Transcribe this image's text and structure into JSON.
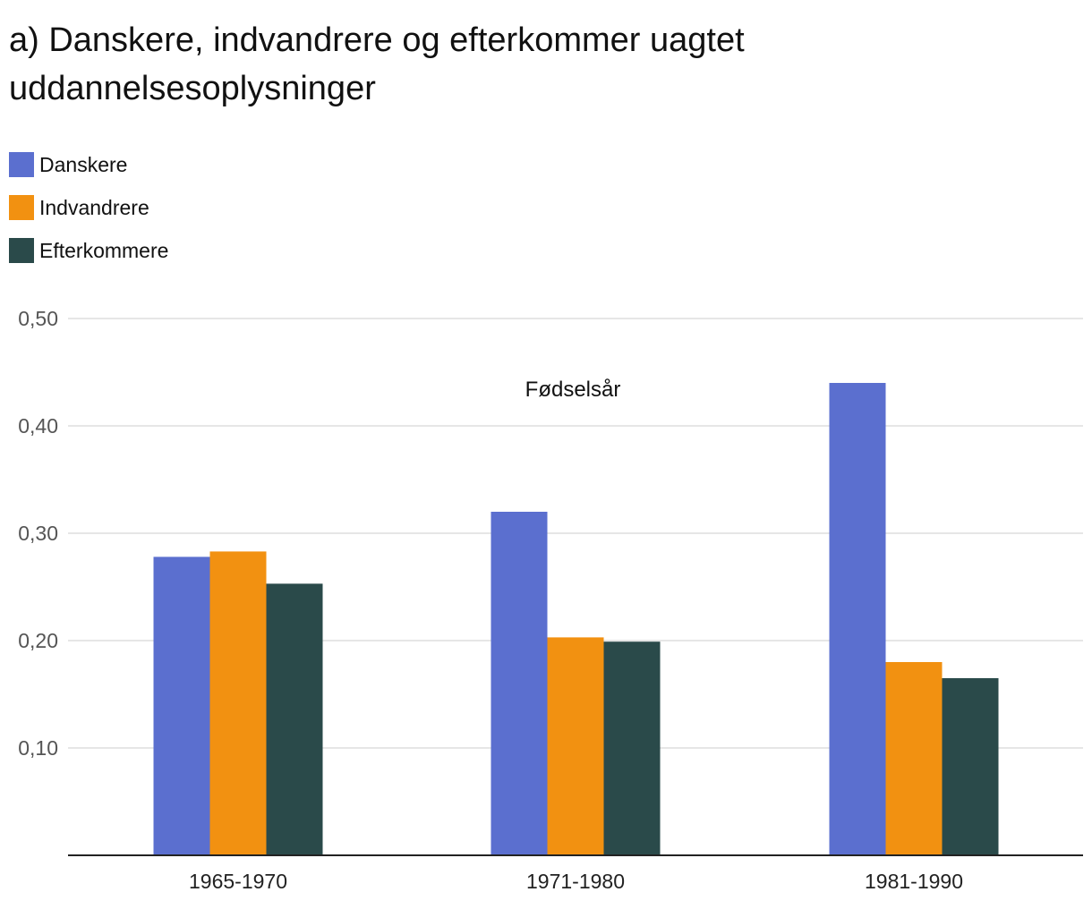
{
  "chart_data": {
    "type": "bar",
    "title": "a) Danskere, indvandrere og efterkommer uagtet uddannelsesoplysninger",
    "xlabel": "",
    "ylabel": "",
    "annotation": "Fødselsår",
    "categories": [
      "1965-1970",
      "1971-1980",
      "1981-1990"
    ],
    "series": [
      {
        "name": "Danskere",
        "color": "#5b6fcf",
        "values": [
          0.278,
          0.32,
          0.44
        ]
      },
      {
        "name": "Indvandrere",
        "color": "#f29111",
        "values": [
          0.283,
          0.203,
          0.18
        ]
      },
      {
        "name": "Efterkommere",
        "color": "#2a4a4a",
        "values": [
          0.253,
          0.199,
          0.165
        ]
      }
    ],
    "ylim": [
      0,
      0.5
    ],
    "yticks": [
      {
        "value": 0.1,
        "label": "0,10"
      },
      {
        "value": 0.2,
        "label": "0,20"
      },
      {
        "value": 0.3,
        "label": "0,30"
      },
      {
        "value": 0.4,
        "label": "0,40"
      },
      {
        "value": 0.5,
        "label": "0,50"
      }
    ],
    "grid": true,
    "legend_position": "top-left"
  }
}
